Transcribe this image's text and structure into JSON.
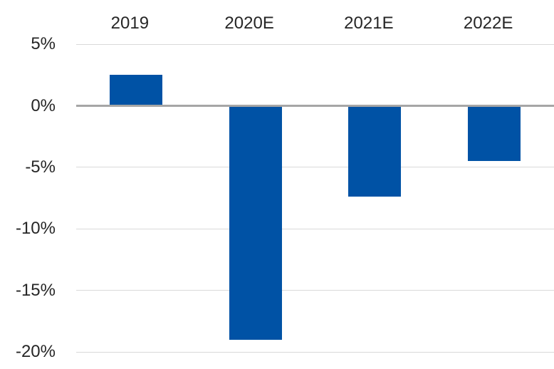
{
  "chart_data": {
    "type": "bar",
    "categories": [
      "2019",
      "2020E",
      "2021E",
      "2022E"
    ],
    "values": [
      2.5,
      -19.0,
      -7.4,
      -4.5
    ],
    "y_ticks": [
      5,
      0,
      -5,
      -10,
      -15,
      -20
    ],
    "y_tick_labels": [
      "5%",
      "0%",
      "-5%",
      "-10%",
      "-15%",
      "-20%"
    ],
    "title": "",
    "xlabel": "",
    "ylabel": "",
    "ylim": [
      -20,
      5
    ],
    "grid": true,
    "legend": false,
    "legend_position": "none",
    "category_axis_position": "top",
    "colors": {
      "bar": "#0052A5",
      "zero_line": "#A6A6A6",
      "gridline": "#D9D9D9",
      "text": "#262626",
      "background": "#FFFFFF"
    }
  }
}
